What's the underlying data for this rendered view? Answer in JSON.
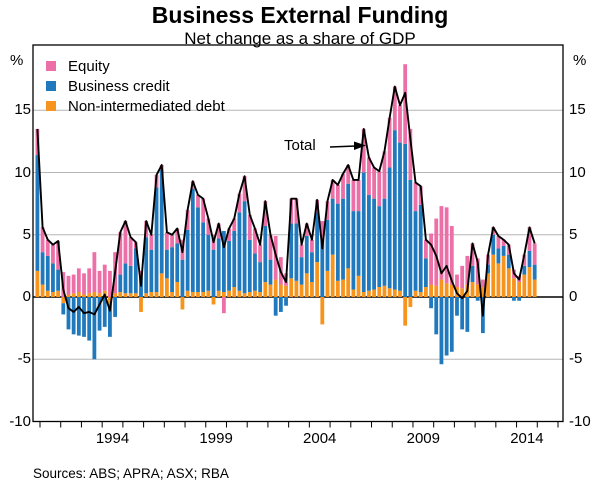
{
  "title": "Business External Funding",
  "subtitle": "Net change as a share of GDP",
  "sources": "Sources: ABS; APRA; ASX; RBA",
  "axis_unit": "%",
  "total_label": "Total",
  "legend": {
    "items": [
      {
        "label": "Equity",
        "color": "#ed6fa7"
      },
      {
        "label": "Business credit",
        "color": "#2179bd"
      },
      {
        "label": "Non-intermediated debt",
        "color": "#f7941d"
      }
    ]
  },
  "colors": {
    "total_line": "#000000",
    "grid": "#b6b6b6",
    "zero_line": "#000000",
    "frame": "#000000",
    "background": "#ffffff"
  },
  "y_axis": {
    "ticks": [
      15,
      10,
      5,
      0,
      -5,
      -10
    ],
    "min": -10,
    "max": 20,
    "grid_step": 5,
    "unit": "%"
  },
  "x_axis": {
    "labels": [
      1994,
      1999,
      2004,
      2009,
      2014
    ],
    "tick_first_year": 1990,
    "tick_last_year": 2015
  },
  "chart_data": {
    "type": "bar",
    "subtype": "stacked-quarterly-bars-with-total-line",
    "title": "Business External Funding",
    "subtitle": "Net change as a share of GDP",
    "ylabel": "%",
    "ylim": [
      -10,
      20
    ],
    "grid": true,
    "legend_position": "top-left-inside",
    "frequency": "quarterly",
    "start_quarter": "1989Q4",
    "end_quarter": "2013Q4",
    "series": [
      {
        "name": "Equity",
        "color": "#ed6fa7",
        "values": [
          2.1,
          2.0,
          1.3,
          1.5,
          2.3,
          2.0,
          1.5,
          1.5,
          1.9,
          1.7,
          2.0,
          3.2,
          1.8,
          2.1,
          2.1,
          3.3,
          3.4,
          3.4,
          2.3,
          0.5,
          0.5,
          1.3,
          1.2,
          1.0,
          0.4,
          1.4,
          1.0,
          1.2,
          1.6,
          1.6,
          0.6,
          1.0,
          1.9,
          1.3,
          1.2,
          1.2,
          -1.3,
          1.0,
          1.0,
          1.5,
          2.0,
          2.0,
          2.0,
          1.4,
          2.0,
          2.0,
          3.5,
          2.2,
          1.0,
          2.0,
          2.0,
          1.0,
          1.0,
          1.0,
          1.0,
          1.5,
          1.5,
          1.5,
          1.5,
          2.0,
          1.5,
          2.5,
          2.5,
          3.5,
          3.0,
          2.5,
          2.8,
          3.8,
          4.0,
          3.5,
          3.0,
          6.4,
          4.1,
          2.3,
          1.5,
          1.5,
          4.1,
          5.4,
          5.9,
          6.1,
          4.7,
          1.0,
          1.8,
          2.3,
          1.8,
          2.1,
          0.6,
          0.8,
          0.6,
          1.0,
          0.5,
          0.8,
          0.7,
          0.5,
          0.9,
          1.9,
          1.7
        ]
      },
      {
        "name": "Business credit",
        "color": "#2179bd",
        "values": [
          9.3,
          2.6,
          2.8,
          2.3,
          1.7,
          -0.9,
          -2.6,
          -3.0,
          -3.1,
          -3.2,
          -3.5,
          -5.0,
          -2.7,
          -2.4,
          -2.6,
          -1.6,
          1.4,
          2.4,
          2.2,
          3.6,
          1.6,
          4.5,
          3.4,
          8.4,
          8.3,
          2.3,
          3.6,
          3.1,
          3.0,
          4.9,
          8.3,
          6.8,
          5.6,
          4.5,
          3.8,
          4.2,
          4.9,
          4.0,
          4.5,
          6.3,
          7.4,
          4.2,
          3.0,
          2.4,
          4.5,
          2.0,
          -1.5,
          -1.2,
          -0.7,
          4.4,
          4.6,
          2.2,
          3.0,
          2.4,
          4.0,
          4.6,
          4.1,
          4.5,
          6.2,
          6.5,
          6.8,
          6.3,
          5.2,
          9.6,
          7.7,
          7.3,
          6.5,
          7.0,
          9.7,
          12.8,
          11.9,
          12.3,
          9.4,
          6.4,
          7.0,
          2.3,
          -0.9,
          -3.0,
          -5.4,
          -4.7,
          -4.4,
          -1.5,
          -2.6,
          -2.8,
          1.3,
          -0.3,
          -2.9,
          0.7,
          1.6,
          1.2,
          0.8,
          1.1,
          -0.3,
          -0.3,
          0.7,
          1.3,
          1.2
        ]
      },
      {
        "name": "Non-intermediated debt",
        "color": "#f7941d",
        "values": [
          2.1,
          1.0,
          0.5,
          0.4,
          0.5,
          -0.5,
          0.2,
          0.3,
          0.4,
          0.2,
          0.3,
          0.4,
          0.3,
          0.5,
          -0.6,
          0.3,
          0.4,
          0.3,
          0.3,
          0.3,
          -1.2,
          0.3,
          0.4,
          0.4,
          1.9,
          1.5,
          0.4,
          1.2,
          -1.0,
          0.5,
          0.4,
          0.4,
          0.4,
          0.5,
          -0.6,
          0.5,
          0.4,
          0.5,
          0.8,
          0.5,
          0.3,
          0.4,
          0.5,
          0.4,
          1.2,
          1.0,
          1.4,
          1.0,
          0.9,
          1.5,
          1.3,
          1.0,
          1.9,
          1.2,
          2.8,
          -2.2,
          2.1,
          3.4,
          1.3,
          1.4,
          2.3,
          0.6,
          1.7,
          0.4,
          0.5,
          0.6,
          0.8,
          0.9,
          0.7,
          0.6,
          0.5,
          -2.3,
          -0.8,
          0.5,
          0.4,
          0.8,
          1.0,
          0.9,
          1.4,
          1.1,
          1.0,
          0.8,
          0.7,
          1.0,
          1.2,
          1.0,
          0.8,
          1.9,
          3.4,
          2.7,
          3.3,
          2.3,
          1.5,
          1.2,
          1.8,
          2.4,
          1.4
        ]
      },
      {
        "name": "Total",
        "type": "line",
        "color": "#000000",
        "values": [
          13.5,
          5.6,
          4.6,
          4.2,
          4.5,
          0.6,
          -0.9,
          -1.2,
          -0.8,
          -1.3,
          -1.2,
          -1.4,
          -0.6,
          0.2,
          -1.1,
          2.0,
          5.2,
          6.1,
          4.8,
          4.4,
          0.9,
          6.1,
          5.0,
          9.8,
          10.6,
          5.2,
          5.0,
          5.5,
          3.6,
          7.0,
          9.3,
          8.2,
          7.9,
          6.3,
          4.4,
          5.9,
          4.0,
          5.5,
          6.3,
          8.3,
          9.7,
          6.6,
          5.5,
          4.2,
          7.7,
          5.0,
          3.4,
          2.0,
          1.2,
          7.9,
          7.9,
          4.2,
          5.9,
          4.6,
          7.8,
          3.9,
          7.7,
          9.4,
          9.0,
          9.9,
          10.6,
          9.4,
          9.4,
          13.5,
          11.2,
          10.4,
          10.1,
          11.7,
          14.4,
          16.9,
          15.4,
          16.4,
          12.7,
          9.2,
          8.9,
          4.6,
          4.2,
          3.3,
          1.9,
          2.5,
          1.3,
          0.3,
          -0.1,
          0.5,
          4.3,
          2.8,
          -1.5,
          3.4,
          5.6,
          4.9,
          4.6,
          4.2,
          1.9,
          1.4,
          3.4,
          5.6,
          4.3
        ]
      }
    ]
  }
}
